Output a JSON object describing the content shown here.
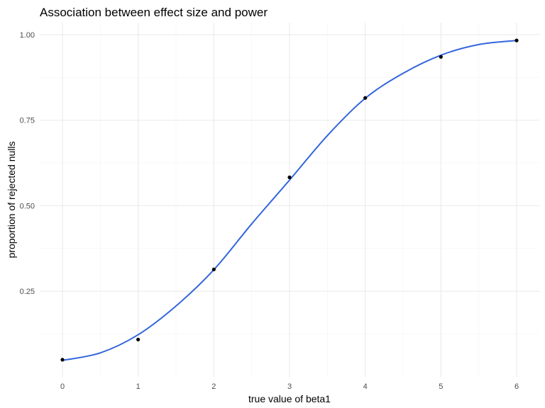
{
  "chart_data": {
    "type": "line",
    "title": "Association between effect size and power",
    "xlabel": "true value of beta1",
    "ylabel": "proportion of rejected nulls",
    "xlim": [
      -0.3,
      6.3
    ],
    "ylim": [
      0.0,
      1.035
    ],
    "x_ticks": [
      0,
      1,
      2,
      3,
      4,
      5,
      6
    ],
    "y_ticks": [
      0.25,
      0.5,
      0.75,
      1.0
    ],
    "x_tick_labels": [
      "0",
      "1",
      "2",
      "3",
      "4",
      "5",
      "6"
    ],
    "y_tick_labels": [
      "0.25",
      "0.50",
      "0.75",
      "1.00"
    ],
    "grid": true,
    "legend": "none",
    "points": {
      "x": [
        0,
        1,
        2,
        3,
        4,
        5,
        6
      ],
      "y": [
        0.05,
        0.109,
        0.314,
        0.583,
        0.815,
        0.935,
        0.983
      ]
    },
    "smooth": {
      "x": [
        0,
        0.5,
        1,
        1.5,
        2,
        2.5,
        3,
        3.5,
        4,
        4.5,
        5,
        5.5,
        6
      ],
      "y": [
        0.048,
        0.07,
        0.123,
        0.207,
        0.313,
        0.447,
        0.575,
        0.705,
        0.814,
        0.887,
        0.94,
        0.971,
        0.983
      ]
    },
    "colors": {
      "smooth": "#3366dd",
      "points": "#000000",
      "grid": "#ebebeb"
    }
  }
}
